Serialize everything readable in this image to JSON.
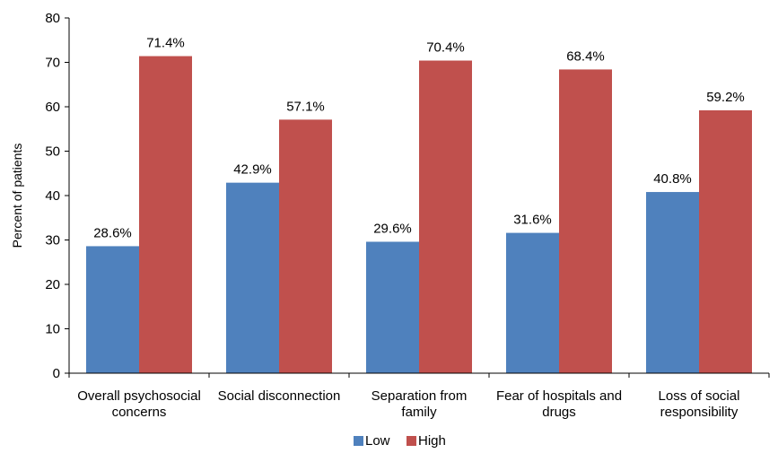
{
  "chart_data": {
    "type": "bar",
    "title": "",
    "xlabel": "",
    "ylabel": "Percent of patients",
    "ylim": [
      0,
      80
    ],
    "yticks": [
      0,
      10,
      20,
      30,
      40,
      50,
      60,
      70,
      80
    ],
    "grid": false,
    "legend_position": "bottom",
    "categories": [
      [
        "Overall psychosocial",
        "concerns"
      ],
      [
        "Social disconnection"
      ],
      [
        "Separation from",
        "family"
      ],
      [
        "Fear of hospitals and",
        "drugs"
      ],
      [
        "Loss of social",
        "responsibility"
      ]
    ],
    "series": [
      {
        "name": "Low",
        "color": "#4F81BD",
        "values": [
          28.6,
          42.9,
          29.6,
          31.6,
          40.8
        ],
        "labels": [
          "28.6%",
          "42.9%",
          "29.6%",
          "31.6%",
          "40.8%"
        ]
      },
      {
        "name": "High",
        "color": "#C0504D",
        "values": [
          71.4,
          57.1,
          70.4,
          68.4,
          59.2
        ],
        "labels": [
          "71.4%",
          "57.1%",
          "70.4%",
          "68.4%",
          "59.2%"
        ]
      }
    ]
  }
}
